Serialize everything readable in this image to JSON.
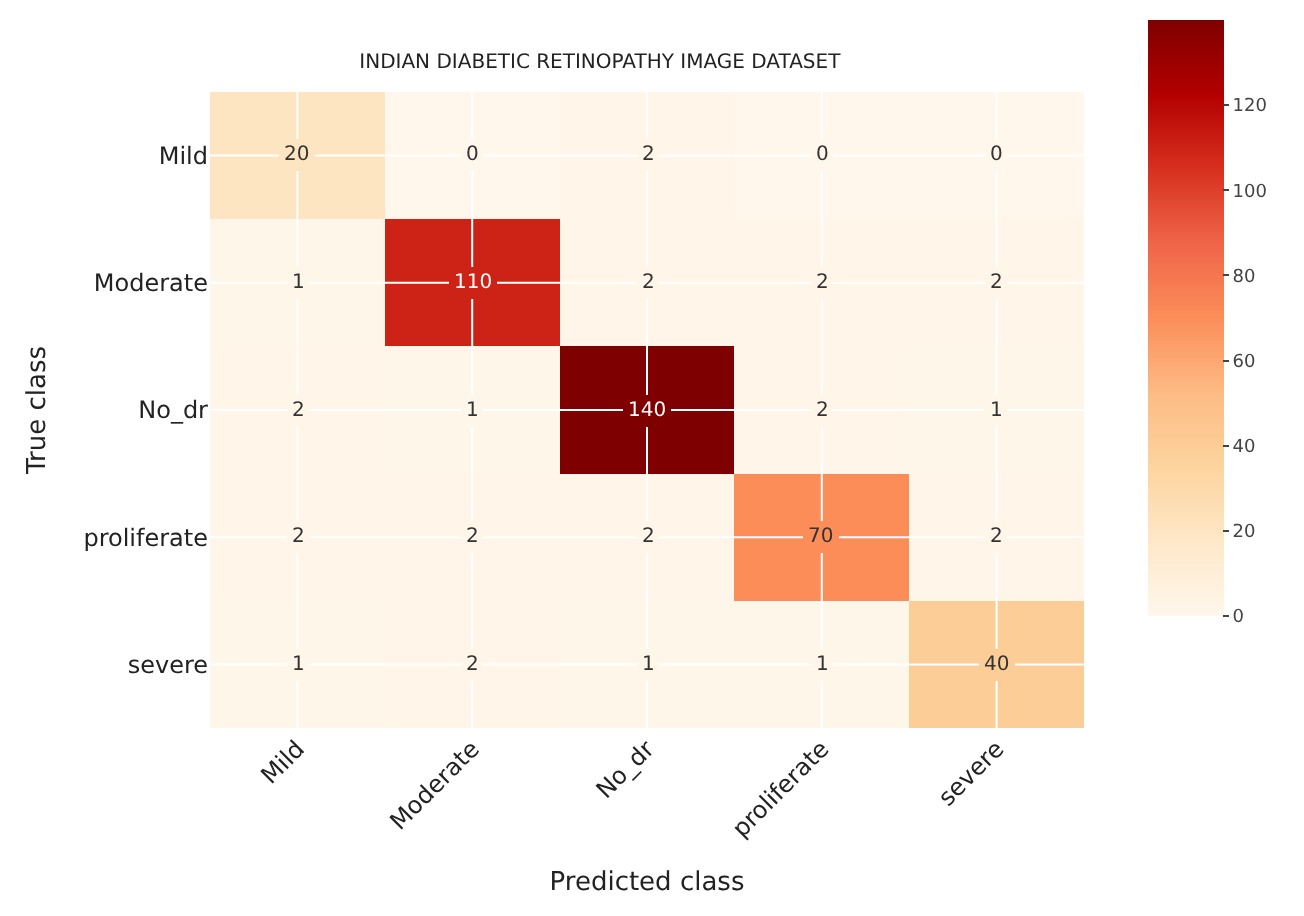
{
  "chart_data": {
    "type": "heatmap",
    "title": "INDIAN DIABETIC RETINOPATHY IMAGE DATASET",
    "xlabel": "Predicted class",
    "ylabel": "True class",
    "categories": [
      "Mild",
      "Moderate",
      "No_dr",
      "proliferate",
      "severe"
    ],
    "y_categories": [
      "Mild",
      "Moderate",
      "No_dr",
      "proliferate",
      "severe"
    ],
    "cells": [
      [
        20,
        0,
        2,
        0,
        0
      ],
      [
        1,
        110,
        2,
        2,
        2
      ],
      [
        2,
        1,
        140,
        2,
        1
      ],
      [
        2,
        2,
        2,
        70,
        2
      ],
      [
        1,
        2,
        1,
        1,
        40
      ]
    ],
    "data_labels": true,
    "clim": [
      0,
      140
    ],
    "cticks": [
      0,
      20,
      40,
      60,
      80,
      100,
      120
    ],
    "grid": true
  }
}
